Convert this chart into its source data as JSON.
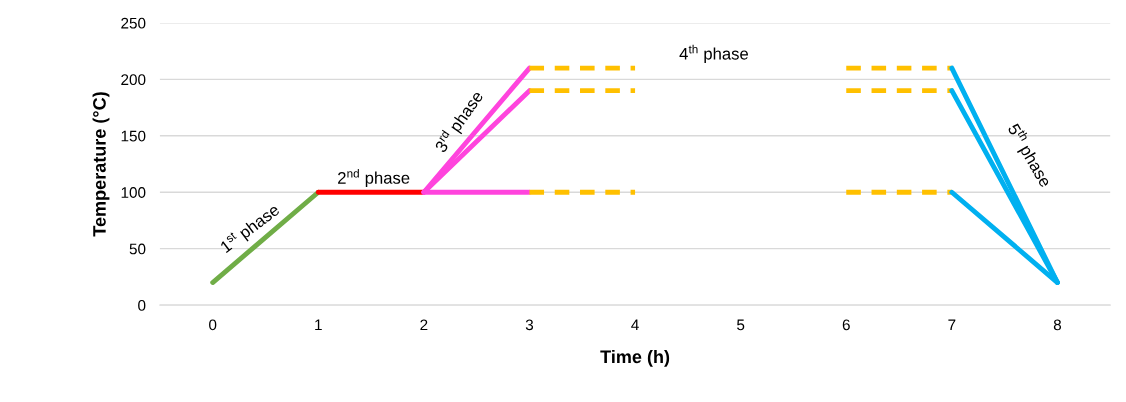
{
  "chart_data": {
    "type": "line",
    "xlabel": "Time (h)",
    "ylabel": "Temperature (°C)",
    "xlim": [
      -0.5,
      8.5
    ],
    "xticks": [
      0,
      1,
      2,
      3,
      4,
      5,
      6,
      7,
      8
    ],
    "ylim": [
      0,
      250
    ],
    "yticks": [
      0,
      50,
      100,
      150,
      200,
      250
    ],
    "grid": "y",
    "line_style": "solid",
    "series": [
      {
        "color": "#70ad47",
        "x": [
          0,
          1
        ],
        "values": [
          20,
          100
        ]
      },
      {
        "color": "#ff0000",
        "x": [
          1,
          2
        ],
        "values": [
          100,
          100
        ]
      },
      {
        "color": "#ff44dd",
        "x": [
          2,
          3
        ],
        "values": [
          100,
          210
        ]
      },
      {
        "color": "#ff44dd",
        "x": [
          2,
          3
        ],
        "values": [
          100,
          190
        ]
      },
      {
        "color": "#ff44dd",
        "x": [
          2,
          3
        ],
        "values": [
          100,
          100
        ]
      },
      {
        "color": "#ffc000",
        "line_style": "dashed",
        "x": [
          3,
          4
        ],
        "values": [
          210,
          210
        ]
      },
      {
        "color": "#ffc000",
        "line_style": "dashed",
        "x": [
          3,
          4
        ],
        "values": [
          190,
          190
        ]
      },
      {
        "color": "#ffc000",
        "line_style": "dashed",
        "x": [
          3,
          4
        ],
        "values": [
          100,
          100
        ]
      },
      {
        "color": "#ffc000",
        "line_style": "dashed",
        "x": [
          6,
          7
        ],
        "values": [
          210,
          210
        ]
      },
      {
        "color": "#ffc000",
        "line_style": "dashed",
        "x": [
          6,
          7
        ],
        "values": [
          190,
          190
        ]
      },
      {
        "color": "#ffc000",
        "line_style": "dashed",
        "x": [
          6,
          7
        ],
        "values": [
          100,
          100
        ]
      },
      {
        "color": "#00b0f0",
        "x": [
          7,
          8
        ],
        "values": [
          210,
          20
        ]
      },
      {
        "color": "#00b0f0",
        "x": [
          7,
          8
        ],
        "values": [
          190,
          20
        ]
      },
      {
        "color": "#00b0f0",
        "x": [
          7,
          8
        ],
        "values": [
          100,
          20
        ]
      }
    ],
    "annotations": [
      "1$^{st}$ phase",
      "2$^{nd}$ phase",
      "3$^{rd}$ phase",
      "4$^{th}$ phase",
      "5$^{th}$ phase"
    ]
  }
}
